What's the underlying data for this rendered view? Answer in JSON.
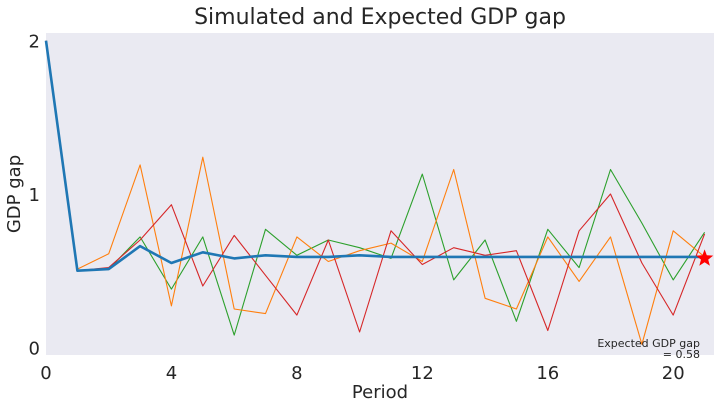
{
  "chart_data": {
    "type": "line",
    "title": "Simulated and Expected GDP gap",
    "xlabel": "Period",
    "ylabel": "GDP gap",
    "xlim": [
      0,
      21.3
    ],
    "ylim": [
      -0.05,
      2.05
    ],
    "xticks": [
      0,
      4,
      8,
      12,
      16,
      20
    ],
    "yticks": [
      0,
      1,
      2
    ],
    "grid": false,
    "x": [
      0,
      1,
      2,
      3,
      4,
      5,
      6,
      7,
      8,
      9,
      10,
      11,
      12,
      13,
      14,
      15,
      16,
      17,
      18,
      19,
      20,
      21
    ],
    "series": [
      {
        "color": "#2ca02c",
        "width": 1.1,
        "values": [
          2.0,
          0.5,
          0.51,
          0.72,
          0.38,
          0.72,
          0.08,
          0.77,
          0.6,
          0.7,
          0.65,
          0.58,
          1.13,
          0.44,
          0.7,
          0.17,
          0.77,
          0.52,
          1.16,
          0.81,
          0.44,
          0.75
        ]
      },
      {
        "color": "#ff7f0e",
        "width": 1.1,
        "values": [
          2.0,
          0.51,
          0.61,
          1.19,
          0.27,
          1.24,
          0.25,
          0.22,
          0.72,
          0.56,
          0.63,
          0.68,
          0.56,
          1.16,
          0.32,
          0.25,
          0.72,
          0.43,
          0.72,
          0.02,
          0.76,
          0.59
        ]
      },
      {
        "color": "#d62728",
        "width": 1.1,
        "values": [
          2.0,
          0.5,
          0.52,
          0.7,
          0.93,
          0.4,
          0.73,
          0.47,
          0.21,
          0.7,
          0.1,
          0.76,
          0.54,
          0.65,
          0.6,
          0.63,
          0.11,
          0.76,
          1.0,
          0.55,
          0.21,
          0.74
        ]
      },
      {
        "color": "#1f77b4",
        "width": 2.6,
        "values": [
          2.0,
          0.5,
          0.51,
          0.66,
          0.55,
          0.62,
          0.58,
          0.6,
          0.59,
          0.59,
          0.6,
          0.59,
          0.59,
          0.59,
          0.59,
          0.59,
          0.59,
          0.59,
          0.59,
          0.59,
          0.59,
          0.59
        ]
      }
    ],
    "marker": {
      "x": 21,
      "y": 0.58,
      "shape": "star",
      "color": "#ff0000"
    },
    "annotation": {
      "line1": "Expected GDP gap",
      "line2": "= 0.58",
      "x": 21,
      "y": 0.0
    },
    "background": "#eaeaf2"
  }
}
